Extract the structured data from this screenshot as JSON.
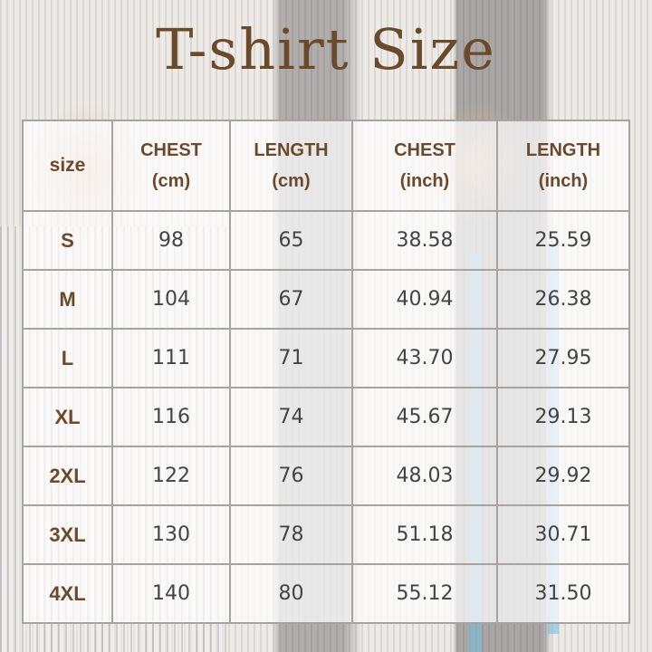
{
  "title": "T-shirt Size",
  "colors": {
    "accent": "#6b4a2b",
    "grid": "#a7a3a0"
  },
  "table": {
    "headers": [
      {
        "line1": "size",
        "line2": ""
      },
      {
        "line1": "CHEST",
        "line2": "(cm)"
      },
      {
        "line1": "LENGTH",
        "line2": "(cm)"
      },
      {
        "line1": "CHEST",
        "line2": "(inch)"
      },
      {
        "line1": "LENGTH",
        "line2": "(inch)"
      }
    ],
    "rows": [
      [
        "S",
        "98",
        "65",
        "38.58",
        "25.59"
      ],
      [
        "M",
        "104",
        "67",
        "40.94",
        "26.38"
      ],
      [
        "L",
        "111",
        "71",
        "43.70",
        "27.95"
      ],
      [
        "XL",
        "116",
        "74",
        "45.67",
        "29.13"
      ],
      [
        "2XL",
        "122",
        "76",
        "48.03",
        "29.92"
      ],
      [
        "3XL",
        "130",
        "78",
        "51.18",
        "30.71"
      ],
      [
        "4XL",
        "140",
        "80",
        "55.12",
        "31.50"
      ]
    ]
  }
}
